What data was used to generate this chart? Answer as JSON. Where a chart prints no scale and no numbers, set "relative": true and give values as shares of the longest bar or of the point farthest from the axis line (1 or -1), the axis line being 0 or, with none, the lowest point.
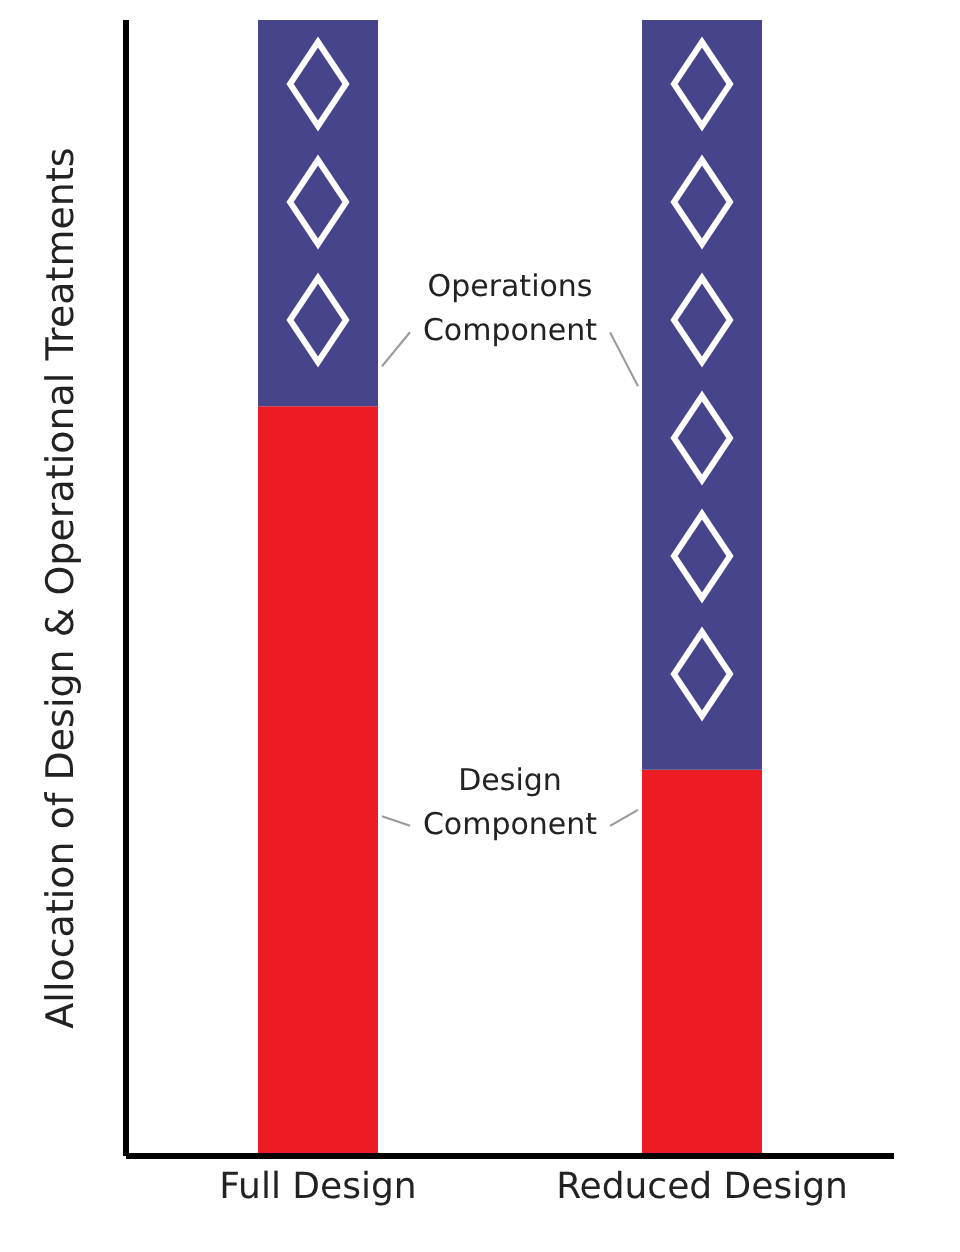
{
  "chart_data": {
    "type": "bar",
    "stacked": true,
    "relative": true,
    "ylabel": "Allocation of Design & Operational Treatments",
    "categories": [
      "Full Design",
      "Reduced Design"
    ],
    "series": [
      {
        "color": "#ed1c24",
        "values": [
          0.66,
          0.34
        ]
      },
      {
        "color": "#46448a",
        "values": [
          0.34,
          0.66
        ]
      }
    ],
    "annotations": [
      "Operations Component",
      "Design Component"
    ],
    "grid": false,
    "legend": false
  }
}
